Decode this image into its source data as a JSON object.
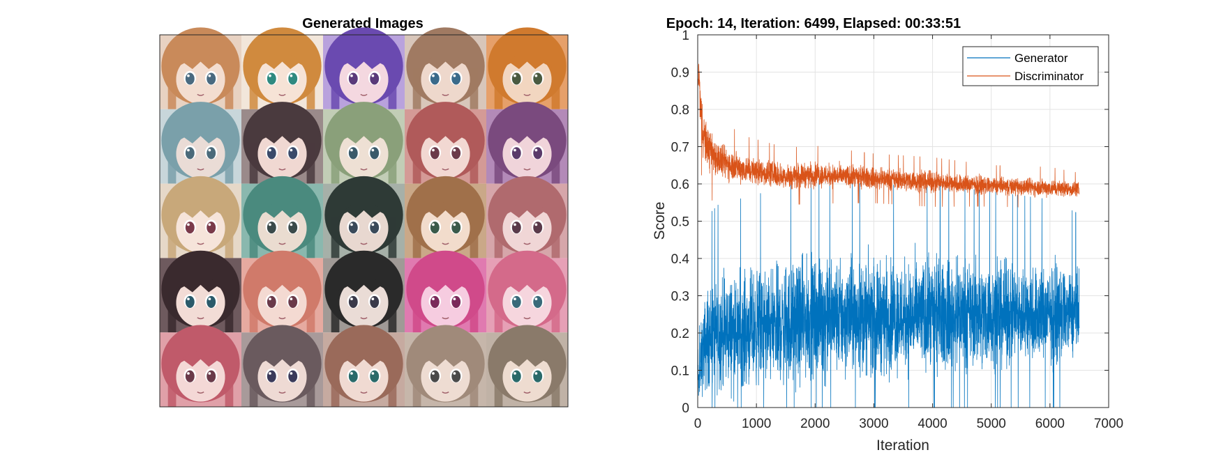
{
  "figure": {
    "left_panel": {
      "title": "Generated Images",
      "grid_rows": 5,
      "grid_cols": 5,
      "faces": [
        {
          "hair": "#c98a5a",
          "skin": "#f3ddd0",
          "eye": "#4a6a80",
          "bg": "#e8d2c2"
        },
        {
          "hair": "#d08a3e",
          "skin": "#f6e3d6",
          "eye": "#2f8a80",
          "bg": "#f2e6da"
        },
        {
          "hair": "#6a4ab0",
          "skin": "#f4d8e0",
          "eye": "#5a3a7a",
          "bg": "#b9a2dd"
        },
        {
          "hair": "#a07a62",
          "skin": "#eed8cc",
          "eye": "#3a6a8a",
          "bg": "#d8c6ba"
        },
        {
          "hair": "#d07a2e",
          "skin": "#f2d6c0",
          "eye": "#4a5a40",
          "bg": "#e6a06a"
        },
        {
          "hair": "#7aa0aa",
          "skin": "#eadcd6",
          "eye": "#4a6a7a",
          "bg": "#c8d6da"
        },
        {
          "hair": "#4a3a3e",
          "skin": "#f0d8d2",
          "eye": "#3a4a6a",
          "bg": "#9a8a8a"
        },
        {
          "hair": "#8aa07a",
          "skin": "#eee0d4",
          "eye": "#3a5a6a",
          "bg": "#c2cdb6"
        },
        {
          "hair": "#b05a5a",
          "skin": "#f2d8d2",
          "eye": "#6a3a4a",
          "bg": "#d49a96"
        },
        {
          "hair": "#7a4a7e",
          "skin": "#f0d4da",
          "eye": "#5a3a6a",
          "bg": "#b38ab8"
        },
        {
          "hair": "#c8a87a",
          "skin": "#f6e4da",
          "eye": "#7a3a4a",
          "bg": "#e6d8c8"
        },
        {
          "hair": "#4a8a7e",
          "skin": "#eadcd0",
          "eye": "#3a4a4a",
          "bg": "#8ab8ae"
        },
        {
          "hair": "#2e3a36",
          "skin": "#e8d8d0",
          "eye": "#3a4a5a",
          "bg": "#a6b0a8"
        },
        {
          "hair": "#a0704a",
          "skin": "#f2dccc",
          "eye": "#3a5a4a",
          "bg": "#caa888"
        },
        {
          "hair": "#b06a6e",
          "skin": "#f0d6d6",
          "eye": "#5a3a4a",
          "bg": "#d6a6aa"
        },
        {
          "hair": "#3a2a2e",
          "skin": "#f2dcd6",
          "eye": "#2a5a6a",
          "bg": "#6e5a5e"
        },
        {
          "hair": "#d07a6a",
          "skin": "#f4dad2",
          "eye": "#6a3a4a",
          "bg": "#e6aaa0"
        },
        {
          "hair": "#2a2a2a",
          "skin": "#eadcd6",
          "eye": "#3a3a4a",
          "bg": "#a09a96"
        },
        {
          "hair": "#d04a8a",
          "skin": "#f6cce0",
          "eye": "#7a2a5a",
          "bg": "#e07ab0"
        },
        {
          "hair": "#d46a8a",
          "skin": "#f6d6de",
          "eye": "#3a6a7a",
          "bg": "#e6a0b6"
        },
        {
          "hair": "#c05a6a",
          "skin": "#f4d8d6",
          "eye": "#6a3a4a",
          "bg": "#e0a0a8"
        },
        {
          "hair": "#6a5a5e",
          "skin": "#eedad4",
          "eye": "#3a3a5a",
          "bg": "#a89a9a"
        },
        {
          "hair": "#9a6a5a",
          "skin": "#f0dad2",
          "eye": "#2a6a6a",
          "bg": "#c6aaa0"
        },
        {
          "hair": "#a08a7a",
          "skin": "#eedcd2",
          "eye": "#4a4a4a",
          "bg": "#c6b6aa"
        },
        {
          "hair": "#8a7a6a",
          "skin": "#eedcd0",
          "eye": "#2a6a6a",
          "bg": "#c0b2a6"
        }
      ]
    },
    "right_panel": {
      "title": "Epoch: 14, Iteration: 6499, Elapsed: 00:33:51",
      "xlabel": "Iteration",
      "ylabel": "Score",
      "x_ticks": [
        "0",
        "1000",
        "2000",
        "3000",
        "4000",
        "5000",
        "6000",
        "7000"
      ],
      "y_ticks": [
        "0",
        "0.1",
        "0.2",
        "0.3",
        "0.4",
        "0.5",
        "0.6",
        "0.7",
        "0.8",
        "0.9",
        "1"
      ],
      "legend": {
        "position": "top-right",
        "items": [
          {
            "label": "Generator",
            "color": "#0072BD"
          },
          {
            "label": "Discriminator",
            "color": "#D95319"
          }
        ]
      }
    }
  },
  "chart_data": {
    "type": "line",
    "title": "Epoch: 14, Iteration: 6499, Elapsed: 00:33:51",
    "xlabel": "Iteration",
    "ylabel": "Score",
    "xlim": [
      0,
      7000
    ],
    "ylim": [
      0,
      1
    ],
    "grid": true,
    "legend_position": "top-right",
    "n_points": 6500,
    "series": [
      {
        "name": "Generator",
        "color": "#0072BD",
        "trend_x": [
          0,
          20,
          50,
          100,
          200,
          400,
          800,
          1500,
          2000,
          3000,
          4000,
          5000,
          6000,
          6499
        ],
        "trend_mean": [
          0.12,
          0.05,
          0.12,
          0.16,
          0.19,
          0.2,
          0.21,
          0.22,
          0.24,
          0.245,
          0.245,
          0.25,
          0.25,
          0.255
        ],
        "trend_spread": [
          0.08,
          0.05,
          0.1,
          0.13,
          0.15,
          0.16,
          0.16,
          0.17,
          0.17,
          0.16,
          0.16,
          0.15,
          0.14,
          0.12
        ]
      },
      {
        "name": "Discriminator",
        "color": "#D95319",
        "trend_x": [
          0,
          20,
          50,
          100,
          200,
          400,
          800,
          1500,
          2000,
          3000,
          4000,
          5000,
          6000,
          6499
        ],
        "trend_mean": [
          0.86,
          0.9,
          0.8,
          0.73,
          0.69,
          0.66,
          0.64,
          0.62,
          0.625,
          0.615,
          0.605,
          0.595,
          0.59,
          0.585
        ],
        "trend_spread": [
          0.04,
          0.05,
          0.07,
          0.07,
          0.06,
          0.05,
          0.04,
          0.035,
          0.035,
          0.03,
          0.03,
          0.025,
          0.025,
          0.02
        ]
      }
    ]
  }
}
